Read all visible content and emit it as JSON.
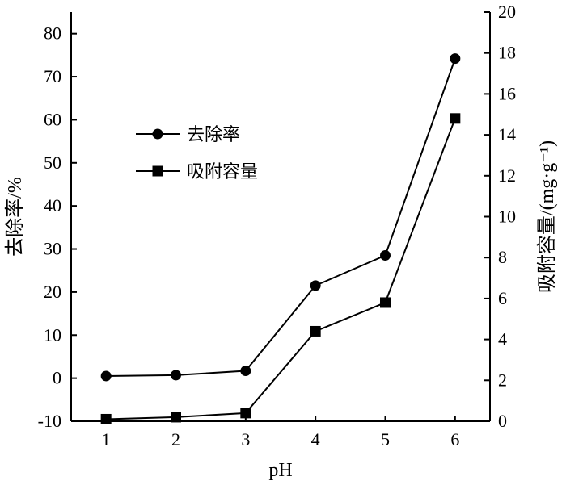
{
  "chart_data": {
    "type": "line",
    "xlabel": "pH",
    "ylabel_left": "去除率/%",
    "ylabel_right": "吸附容量/(mg·g⁻¹)",
    "x": [
      1,
      2,
      3,
      4,
      5,
      6
    ],
    "xlim": [
      0.5,
      6.5
    ],
    "xticks": [
      "1",
      "2",
      "3",
      "4",
      "5",
      "6"
    ],
    "ylim_left": [
      -10,
      85
    ],
    "yticks_left": [
      "-10",
      "0",
      "10",
      "20",
      "30",
      "40",
      "50",
      "60",
      "70",
      "80"
    ],
    "ylim_right": [
      0,
      20
    ],
    "yticks_right": [
      "0",
      "2",
      "4",
      "6",
      "8",
      "10",
      "12",
      "14",
      "16",
      "18",
      "20"
    ],
    "grid": false,
    "legend_position": "upper-left",
    "series": [
      {
        "name": "去除率",
        "axis": "left",
        "marker": "circle",
        "color": "#000000",
        "values": [
          0.5,
          0.7,
          1.7,
          21.5,
          28.5,
          74.2
        ]
      },
      {
        "name": "吸附容量",
        "axis": "right",
        "marker": "square",
        "color": "#000000",
        "values": [
          0.1,
          0.2,
          0.4,
          4.4,
          5.8,
          14.8
        ]
      }
    ]
  }
}
